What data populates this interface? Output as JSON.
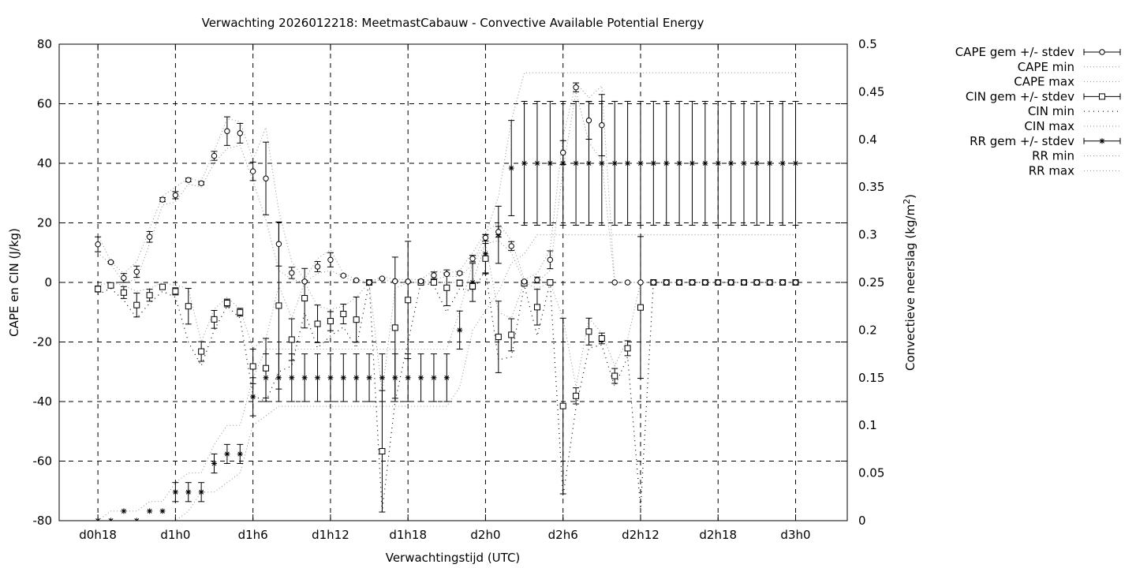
{
  "chart_data": {
    "type": "line",
    "title": "Verwachting 2026012218: MeetmastCabauw - Convective Available Potential Energy",
    "xlabel": "Verwachtingstijd (UTC)",
    "ylabel": "CAPE en CIN (J/kg)",
    "y2label": "Convectieve neerslag",
    "y2unit": "(kg/m",
    "y2unit_sup": "2",
    "y2unit_close": ")",
    "xlim_hours": [
      15,
      76
    ],
    "x_tick_hours": [
      18,
      24,
      30,
      36,
      42,
      48,
      54,
      60,
      66,
      72
    ],
    "x_tick_labels": [
      "d0h18",
      "d1h0",
      "d1h6",
      "d1h12",
      "d1h18",
      "d2h0",
      "d2h6",
      "d2h12",
      "d2h18",
      "d3h0"
    ],
    "ylim": [
      -80,
      80
    ],
    "y_ticks": [
      -80,
      -60,
      -40,
      -20,
      0,
      20,
      40,
      60,
      80
    ],
    "y_tick_labels": [
      "-80",
      "-60",
      "-40",
      "-20",
      "0",
      "20",
      "40",
      "60",
      "80"
    ],
    "y2lim": [
      0,
      0.5
    ],
    "y2_ticks": [
      0,
      0.05,
      0.1,
      0.15,
      0.2,
      0.25,
      0.3,
      0.35,
      0.4,
      0.45,
      0.5
    ],
    "y2_tick_labels": [
      "0",
      "0.05",
      "0.1",
      "0.15",
      "0.2",
      "0.25",
      "0.3",
      "0.35",
      "0.4",
      "0.45",
      "0.5"
    ],
    "grid": true,
    "legend_position": "top-right, outside plot",
    "x_hours": [
      18,
      19,
      20,
      21,
      22,
      23,
      24,
      25,
      26,
      27,
      28,
      29,
      30,
      31,
      32,
      33,
      34,
      35,
      36,
      37,
      38,
      39,
      40,
      41,
      42,
      43,
      44,
      45,
      46,
      47,
      48,
      49,
      50,
      51,
      52,
      53,
      54,
      55,
      56,
      57,
      58,
      59,
      60,
      61,
      62,
      63,
      64,
      65,
      66,
      67,
      68,
      69,
      70,
      71,
      72
    ],
    "series": [
      {
        "name": "CAPE gem +/- stdev",
        "marker": "circle",
        "axis": "left",
        "values": [
          12.8,
          6.8,
          1.5,
          3.6,
          15.3,
          27.8,
          29.3,
          34.4,
          33.3,
          42.5,
          50.8,
          50.1,
          37.3,
          34.9,
          12.9,
          3.2,
          0.3,
          5.3,
          7.6,
          2.3,
          0.7,
          0,
          1.3,
          0.4,
          0.3,
          0.4,
          2.4,
          2.8,
          3.1,
          8,
          15,
          17,
          12.2,
          0.3,
          0.8,
          7.6,
          43.6,
          65.5,
          54.4,
          52.8,
          0,
          0,
          0,
          0,
          0,
          0,
          0,
          0,
          0,
          0,
          0,
          0,
          0,
          0,
          0
        ],
        "stdev": [
          2.5,
          0.3,
          1.5,
          1.9,
          1.8,
          0.7,
          1.2,
          0.6,
          0.5,
          1.5,
          4.8,
          3.3,
          3.1,
          12.2,
          7.4,
          1.9,
          0.3,
          1.7,
          2.4,
          0.3,
          0.2,
          0,
          0.2,
          0.1,
          0.1,
          0.2,
          1.1,
          0.3,
          0.4,
          1.1,
          1.1,
          1.8,
          1.5,
          0.2,
          1,
          3,
          4,
          1.5,
          6.3,
          10.3,
          0,
          0,
          0,
          0,
          0,
          0,
          0,
          0,
          0,
          0,
          0,
          0,
          0,
          0,
          0
        ]
      },
      {
        "name": "CAPE min",
        "axis": "left",
        "values": [
          10,
          6,
          0,
          1,
          13,
          26,
          27,
          33,
          32,
          40,
          45,
          46,
          34,
          21,
          4,
          1,
          0,
          3,
          4,
          2,
          0,
          0,
          1,
          0,
          0,
          0,
          1,
          2,
          2,
          6,
          13,
          14,
          10,
          0,
          0,
          4,
          38,
          64,
          47,
          41,
          0,
          0,
          0,
          0,
          0,
          0,
          0,
          0,
          0,
          0,
          0,
          0,
          0,
          0,
          0
        ]
      },
      {
        "name": "CAPE max",
        "axis": "left",
        "values": [
          16,
          7,
          3,
          7,
          18,
          29,
          32,
          35,
          34,
          44,
          55,
          54,
          41,
          52,
          24,
          7,
          1,
          8,
          11,
          3,
          1,
          0,
          2,
          1,
          1,
          1,
          4,
          3,
          4,
          10,
          17,
          20,
          14,
          1,
          3,
          11,
          49,
          67,
          62,
          66,
          0,
          0,
          0,
          0,
          0,
          0,
          0,
          0,
          0,
          0,
          0,
          0,
          0,
          0,
          0
        ]
      },
      {
        "name": "CIN gem +/- stdev",
        "marker": "square",
        "axis": "left",
        "values": [
          -2.2,
          -1,
          -3.4,
          -7.6,
          -4.3,
          -1.5,
          -3,
          -8,
          -23.2,
          -12.4,
          -6.9,
          -10,
          -28.2,
          -28.8,
          -7.8,
          -19.2,
          -5.3,
          -13.9,
          -13,
          -10.6,
          -12.5,
          0,
          -56.7,
          -15.2,
          -5.9,
          0,
          0,
          -1.8,
          -0.2,
          -1.3,
          8,
          -18.3,
          -17.6,
          -0.3,
          -8.3,
          0,
          -41.5,
          -38.1,
          -16.5,
          -18.8,
          -31.4,
          -22.1,
          -8.4,
          0,
          0,
          0,
          0,
          0,
          0,
          0,
          0,
          0,
          0,
          0,
          0
        ],
        "stdev": [
          1,
          0.5,
          2,
          4,
          2,
          0.8,
          1.2,
          6,
          3.3,
          3,
          1.3,
          1.3,
          5.8,
          10,
          28,
          7,
          10,
          6.3,
          3.2,
          3.3,
          7.6,
          0,
          20.4,
          23.7,
          19.7,
          0,
          0.5,
          6,
          1,
          1,
          5.1,
          12,
          5.4,
          0.5,
          6,
          0.5,
          29.5,
          2.7,
          4.5,
          1.8,
          2.5,
          2.5,
          23.8,
          0,
          0,
          0,
          0,
          0,
          0,
          0,
          0,
          0,
          0,
          0,
          0
        ]
      },
      {
        "name": "CIN min",
        "axis": "left",
        "values": [
          -4,
          -2,
          -6,
          -12,
          -7,
          -3,
          -5,
          -20,
          -28,
          -16,
          -8,
          -12,
          -38,
          -40,
          -30,
          -28,
          -10,
          -22,
          -18,
          -15,
          -22,
          0,
          -77,
          -40,
          -20,
          0,
          -1,
          -10,
          -2,
          -3,
          4,
          -26,
          -25,
          -1,
          -18,
          0,
          -72,
          -42,
          -22,
          -21,
          -35,
          -25,
          -76,
          0,
          0,
          0,
          0,
          0,
          0,
          0,
          0,
          0,
          0,
          0,
          0
        ]
      },
      {
        "name": "CIN max",
        "axis": "left",
        "values": [
          -1,
          0,
          -1,
          -3,
          -2,
          0,
          -1,
          -2,
          -20,
          -9,
          -5,
          -9,
          -22,
          -19,
          -1,
          -12,
          0,
          -8,
          -9,
          -8,
          -5,
          0,
          -37,
          -2,
          0,
          0,
          0,
          0,
          0,
          0,
          13,
          -10,
          -12,
          0,
          -2,
          0,
          -12,
          -35,
          -12,
          -17,
          -28,
          -19,
          0,
          0,
          0,
          0,
          0,
          0,
          0,
          0,
          0,
          0,
          0,
          0,
          0
        ]
      },
      {
        "name": "RR gem +/- stdev",
        "marker": "star",
        "axis": "right",
        "values": [
          0,
          0,
          0.01,
          0,
          0.01,
          0.01,
          0.03,
          0.03,
          0.03,
          0.06,
          0.07,
          0.07,
          0.13,
          0.15,
          0.15,
          0.15,
          0.15,
          0.15,
          0.15,
          0.15,
          0.15,
          0.15,
          0.15,
          0.15,
          0.15,
          0.15,
          0.15,
          0.15,
          0.2,
          0.25,
          0.28,
          0.3,
          0.37,
          0.375,
          0.375,
          0.375,
          0.375,
          0.375,
          0.375,
          0.375,
          0.375,
          0.375,
          0.375,
          0.375,
          0.375,
          0.375,
          0.375,
          0.375,
          0.375,
          0.375,
          0.375,
          0.375,
          0.375,
          0.375,
          0.375
        ],
        "stdev": [
          0,
          0,
          0,
          0,
          0,
          0,
          0.01,
          0.01,
          0.01,
          0.01,
          0.01,
          0.01,
          0.02,
          0.025,
          0.025,
          0.025,
          0.025,
          0.025,
          0.025,
          0.025,
          0.025,
          0.025,
          0.025,
          0.025,
          0.025,
          0.025,
          0.025,
          0.025,
          0.02,
          0.02,
          0.02,
          0.03,
          0.05,
          0.065,
          0.065,
          0.065,
          0.065,
          0.065,
          0.065,
          0.065,
          0.065,
          0.065,
          0.065,
          0.065,
          0.065,
          0.065,
          0.065,
          0.065,
          0.065,
          0.065,
          0.065,
          0.065,
          0.065,
          0.065,
          0.065
        ]
      },
      {
        "name": "RR min",
        "axis": "right",
        "values": [
          0,
          0,
          0,
          0,
          0,
          0,
          0,
          0.01,
          0.03,
          0.03,
          0.04,
          0.05,
          0.1,
          0.11,
          0.12,
          0.12,
          0.12,
          0.12,
          0.12,
          0.12,
          0.12,
          0.12,
          0.12,
          0.12,
          0.12,
          0.12,
          0.12,
          0.12,
          0.14,
          0.2,
          0.22,
          0.24,
          0.27,
          0.28,
          0.3,
          0.3,
          0.3,
          0.3,
          0.3,
          0.3,
          0.3,
          0.3,
          0.3,
          0.3,
          0.3,
          0.3,
          0.3,
          0.3,
          0.3,
          0.3,
          0.3,
          0.3,
          0.3,
          0.3,
          0.3
        ]
      },
      {
        "name": "RR max",
        "axis": "right",
        "values": [
          0,
          0.01,
          0.01,
          0.01,
          0.02,
          0.02,
          0.04,
          0.05,
          0.05,
          0.08,
          0.1,
          0.1,
          0.15,
          0.18,
          0.18,
          0.18,
          0.18,
          0.18,
          0.18,
          0.18,
          0.18,
          0.18,
          0.18,
          0.18,
          0.18,
          0.18,
          0.18,
          0.18,
          0.22,
          0.27,
          0.3,
          0.34,
          0.42,
          0.47,
          0.47,
          0.47,
          0.47,
          0.47,
          0.47,
          0.47,
          0.47,
          0.47,
          0.47,
          0.47,
          0.47,
          0.47,
          0.47,
          0.47,
          0.47,
          0.47,
          0.47,
          0.47,
          0.47,
          0.47,
          0.47
        ]
      }
    ]
  }
}
